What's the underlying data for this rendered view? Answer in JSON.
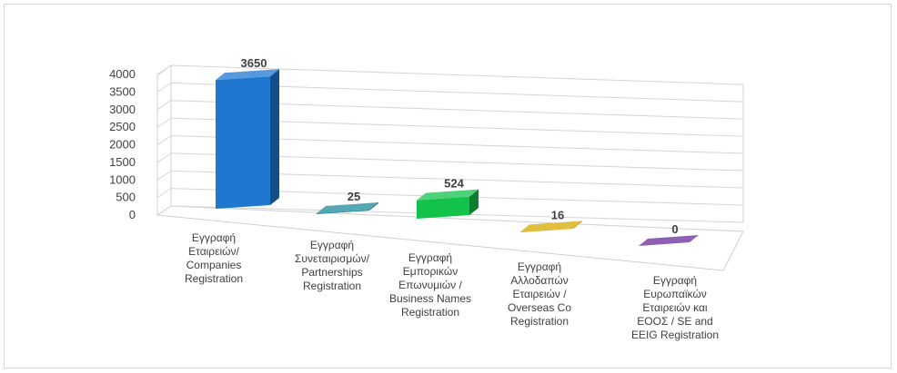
{
  "chart_data": {
    "type": "bar",
    "title": "",
    "xlabel": "",
    "ylabel": "",
    "ylim": [
      0,
      4000
    ],
    "yticks": [
      0,
      500,
      1000,
      1500,
      2000,
      2500,
      3000,
      3500,
      4000
    ],
    "yticks_labels": [
      "0",
      "500",
      "1000",
      "1500",
      "2000",
      "2500",
      "3000",
      "3500",
      "4000"
    ],
    "grid": true,
    "categories": [
      "Εγγραφή Εταιρειών/ Companies Registration",
      "Εγγραφή Συνεταιρισμών/ Partnerships Registration",
      "Εγγραφή Εμπορικών Επωνυμιών / Business Names Registration",
      "Εγγραφή Αλλοδαπών Εταιρειών / Overseas Co Registration",
      "Εγγραφή Ευρωπαϊκών Εταιρειών και ΕΟΟΣ / SE and EEIG Registration"
    ],
    "category_lines": [
      [
        "Εγγραφή",
        "Εταιρειών/",
        "Companies",
        "Registration"
      ],
      [
        "Εγγραφή",
        "Συνεταιρισμών/",
        "Partnerships",
        "Registration"
      ],
      [
        "Εγγραφή",
        "Εμπορικών",
        "Επωνυμιών /",
        "Business Names",
        "Registration"
      ],
      [
        "Εγγραφή",
        "Αλλοδαπών",
        "Εταιρειών /",
        "Overseas Co",
        "Registration"
      ],
      [
        "Εγγραφή",
        "Ευρωπαϊκών",
        "Εταιρειών και",
        "ΕΟΟΣ / SE and",
        "EEIG Registration"
      ]
    ],
    "values": [
      3650,
      25,
      524,
      16,
      0
    ],
    "data_labels": [
      "3650",
      "25",
      "524",
      "16",
      "0"
    ],
    "colors": [
      "#1f77d0",
      "#1b8a9a",
      "#13c24a",
      "#d6a800",
      "#6a2a9a"
    ]
  }
}
